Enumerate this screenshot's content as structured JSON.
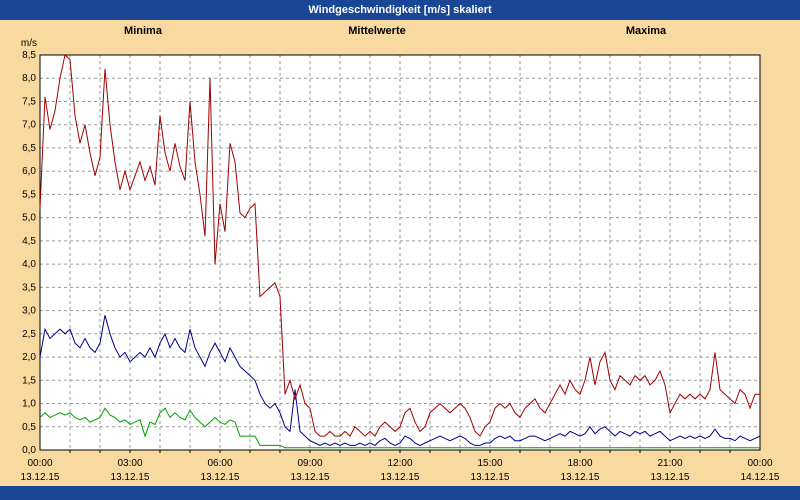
{
  "title": "Windgeschwindigkeit [m/s] skaliert",
  "colors": {
    "titlebar_bg": "#1a4696",
    "panel_bg": "#f8d9a0",
    "plot_bg": "#ffffff",
    "grid": "#999999",
    "border": "#000000",
    "minima": "#00a000",
    "mittelwerte": "#000090",
    "maxima": "#a00000"
  },
  "chart_data": {
    "type": "line",
    "title": "Windgeschwindigkeit [m/s] skaliert",
    "ylabel": "m/s",
    "xlabel": "",
    "ylim": [
      0,
      8.5
    ],
    "ytick_step": 0.5,
    "grid": true,
    "legend_position": "top",
    "yticks": [
      "8,5",
      "8,0",
      "7,5",
      "7,0",
      "6,5",
      "6,0",
      "5,5",
      "5,0",
      "4,5",
      "4,0",
      "3,5",
      "3,0",
      "2,5",
      "2,0",
      "1,5",
      "1,0",
      "0,5",
      "0,0"
    ],
    "xticks": [
      {
        "time": "00:00",
        "date": "13.12.15"
      },
      {
        "time": "03:00",
        "date": "13.12.15"
      },
      {
        "time": "06:00",
        "date": "13.12.15"
      },
      {
        "time": "09:00",
        "date": "13.12.15"
      },
      {
        "time": "12:00",
        "date": "13.12.15"
      },
      {
        "time": "15:00",
        "date": "13.12.15"
      },
      {
        "time": "18:00",
        "date": "13.12.15"
      },
      {
        "time": "21:00",
        "date": "13.12.15"
      },
      {
        "time": "00:00",
        "date": "14.12.15"
      }
    ],
    "x_interval_minutes": 10,
    "series": [
      {
        "name": "Minima",
        "color": "#00a000",
        "values": [
          0.7,
          0.8,
          0.7,
          0.75,
          0.8,
          0.75,
          0.8,
          0.7,
          0.65,
          0.7,
          0.6,
          0.65,
          0.7,
          0.9,
          0.75,
          0.7,
          0.6,
          0.65,
          0.55,
          0.6,
          0.65,
          0.3,
          0.6,
          0.55,
          0.8,
          0.9,
          0.7,
          0.8,
          0.7,
          0.65,
          0.85,
          0.7,
          0.6,
          0.5,
          0.6,
          0.7,
          0.6,
          0.55,
          0.65,
          0.6,
          0.3,
          0.3,
          0.3,
          0.3,
          0.1,
          0.1,
          0.1,
          0.1,
          0.1,
          0.05,
          0.05,
          0.05,
          0.05,
          0.05,
          0.05,
          0.05,
          0.05,
          0.05,
          0.05,
          0.05,
          0.05,
          0.05,
          0.05,
          0.05,
          0.05,
          0.05,
          0.05,
          0.05,
          0.05,
          0.05,
          0.05,
          0.05,
          0.05,
          0.05,
          0.05,
          0.05,
          0.05,
          0.05,
          0.05,
          0.05,
          0.05,
          0.05,
          0.05,
          0.05,
          0.05,
          0.05,
          0.05,
          0.05,
          0.05,
          0.05,
          0.05,
          0.05,
          0.05,
          0.05,
          0.05,
          0.05,
          0.05,
          0.05,
          0.05,
          0.05,
          0.05,
          0.05,
          0.05,
          0.05,
          0.05,
          0.05,
          0.05,
          0.05,
          0.05,
          0.05,
          0.05,
          0.05,
          0.05,
          0.05,
          0.05,
          0.05,
          0.05,
          0.05,
          0.05,
          0.05,
          0.05,
          0.05,
          0.05,
          0.05,
          0.05,
          0.05,
          0.05,
          0.05,
          0.05,
          0.05,
          0.05,
          0.05,
          0.05,
          0.05,
          0.05,
          0.05,
          0.05,
          0.05,
          0.05,
          0.05,
          0.05,
          0.05,
          0.05,
          0.05,
          0.05
        ]
      },
      {
        "name": "Mittelwerte",
        "color": "#000090",
        "values": [
          2.0,
          2.6,
          2.4,
          2.5,
          2.6,
          2.5,
          2.6,
          2.3,
          2.2,
          2.4,
          2.2,
          2.1,
          2.3,
          2.9,
          2.5,
          2.2,
          2.0,
          2.1,
          1.9,
          2.0,
          2.1,
          2.0,
          2.2,
          2.0,
          2.3,
          2.5,
          2.2,
          2.4,
          2.2,
          2.1,
          2.6,
          2.2,
          2.0,
          1.8,
          2.1,
          2.3,
          2.1,
          1.9,
          2.2,
          2.0,
          1.8,
          1.7,
          1.6,
          1.5,
          1.2,
          1.0,
          0.9,
          1.0,
          0.8,
          0.5,
          0.4,
          1.3,
          0.4,
          0.3,
          0.2,
          0.15,
          0.1,
          0.15,
          0.1,
          0.15,
          0.1,
          0.15,
          0.1,
          0.1,
          0.15,
          0.1,
          0.15,
          0.1,
          0.2,
          0.25,
          0.15,
          0.1,
          0.15,
          0.3,
          0.25,
          0.15,
          0.1,
          0.15,
          0.2,
          0.25,
          0.3,
          0.25,
          0.2,
          0.25,
          0.3,
          0.25,
          0.15,
          0.1,
          0.1,
          0.15,
          0.15,
          0.25,
          0.3,
          0.25,
          0.3,
          0.2,
          0.2,
          0.25,
          0.3,
          0.3,
          0.25,
          0.2,
          0.25,
          0.3,
          0.35,
          0.3,
          0.4,
          0.35,
          0.3,
          0.35,
          0.5,
          0.35,
          0.45,
          0.5,
          0.4,
          0.3,
          0.4,
          0.35,
          0.3,
          0.4,
          0.35,
          0.4,
          0.3,
          0.35,
          0.4,
          0.3,
          0.2,
          0.25,
          0.3,
          0.25,
          0.3,
          0.25,
          0.3,
          0.25,
          0.3,
          0.45,
          0.3,
          0.25,
          0.25,
          0.2,
          0.3,
          0.25,
          0.2,
          0.25,
          0.3
        ]
      },
      {
        "name": "Maxima",
        "color": "#a00000",
        "values": [
          5.2,
          7.6,
          6.9,
          7.3,
          8.0,
          8.5,
          8.4,
          7.2,
          6.6,
          7.0,
          6.4,
          5.9,
          6.3,
          8.2,
          7.0,
          6.2,
          5.6,
          6.0,
          5.6,
          5.9,
          6.2,
          5.8,
          6.1,
          5.7,
          7.2,
          6.4,
          6.0,
          6.6,
          6.1,
          5.8,
          7.5,
          6.2,
          5.5,
          4.6,
          8.0,
          4.0,
          5.3,
          4.7,
          6.6,
          6.2,
          5.1,
          5.0,
          5.2,
          5.3,
          3.3,
          3.4,
          3.5,
          3.6,
          3.3,
          1.2,
          1.5,
          1.1,
          1.4,
          1.0,
          0.9,
          0.4,
          0.3,
          0.3,
          0.4,
          0.3,
          0.3,
          0.4,
          0.3,
          0.5,
          0.4,
          0.3,
          0.4,
          0.3,
          0.5,
          0.6,
          0.5,
          0.4,
          0.5,
          0.8,
          0.9,
          0.6,
          0.4,
          0.5,
          0.8,
          0.9,
          1.0,
          0.9,
          0.8,
          0.9,
          1.0,
          0.9,
          0.7,
          0.4,
          0.3,
          0.5,
          0.6,
          0.9,
          1.0,
          0.9,
          1.0,
          0.8,
          0.7,
          0.9,
          1.0,
          1.1,
          0.9,
          0.8,
          1.0,
          1.2,
          1.4,
          1.2,
          1.5,
          1.3,
          1.2,
          1.5,
          2.0,
          1.4,
          1.9,
          2.1,
          1.5,
          1.3,
          1.6,
          1.5,
          1.4,
          1.6,
          1.5,
          1.6,
          1.4,
          1.5,
          1.7,
          1.4,
          0.8,
          1.0,
          1.2,
          1.1,
          1.2,
          1.1,
          1.2,
          1.1,
          1.3,
          2.1,
          1.3,
          1.2,
          1.1,
          1.0,
          1.3,
          1.2,
          0.9,
          1.2,
          1.2
        ]
      }
    ]
  }
}
